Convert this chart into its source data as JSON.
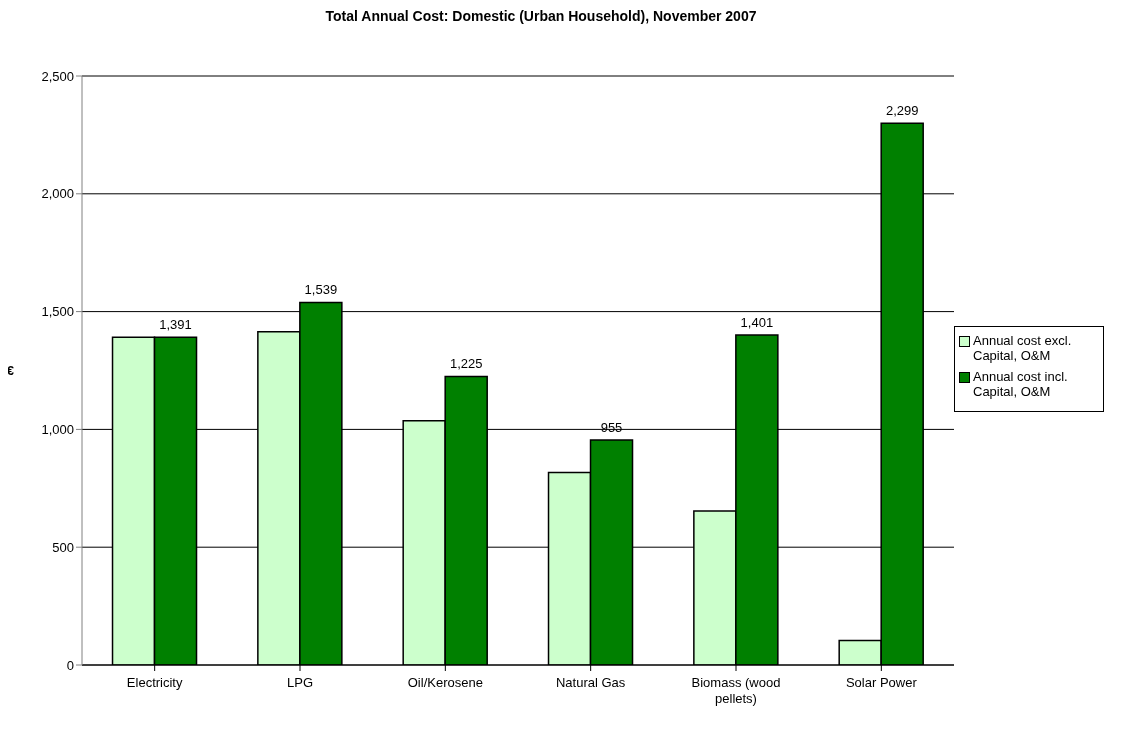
{
  "chart_data": {
    "type": "bar",
    "title": "Total Annual Cost: Domestic (Urban Household), November 2007",
    "ylabel": "€",
    "categories": [
      "Electricity",
      "LPG",
      "Oil/Kerosene",
      "Natural Gas",
      "Biomass (wood pellets)",
      "Solar Power"
    ],
    "series": [
      {
        "name": "Annual cost excl. Capital, O&M",
        "color": "#ccffcc",
        "values": [
          1391,
          1414,
          1037,
          817,
          654,
          104
        ]
      },
      {
        "name": "Annual cost incl. Capital, O&M",
        "color": "#008000",
        "values": [
          1391,
          1539,
          1225,
          955,
          1401,
          2299
        ],
        "value_labels": [
          "1,391",
          "1,539",
          "1,225",
          "955",
          "1,401",
          "2,299"
        ]
      }
    ],
    "ylim": [
      0,
      2500
    ],
    "yticks": [
      {
        "value": 0,
        "label": "0"
      },
      {
        "value": 500,
        "label": "500"
      },
      {
        "value": 1000,
        "label": "1,000"
      },
      {
        "value": 1500,
        "label": "1,500"
      },
      {
        "value": 2000,
        "label": "2,000"
      },
      {
        "value": 2500,
        "label": "2,500"
      }
    ],
    "grid": "y",
    "legend": "right"
  }
}
